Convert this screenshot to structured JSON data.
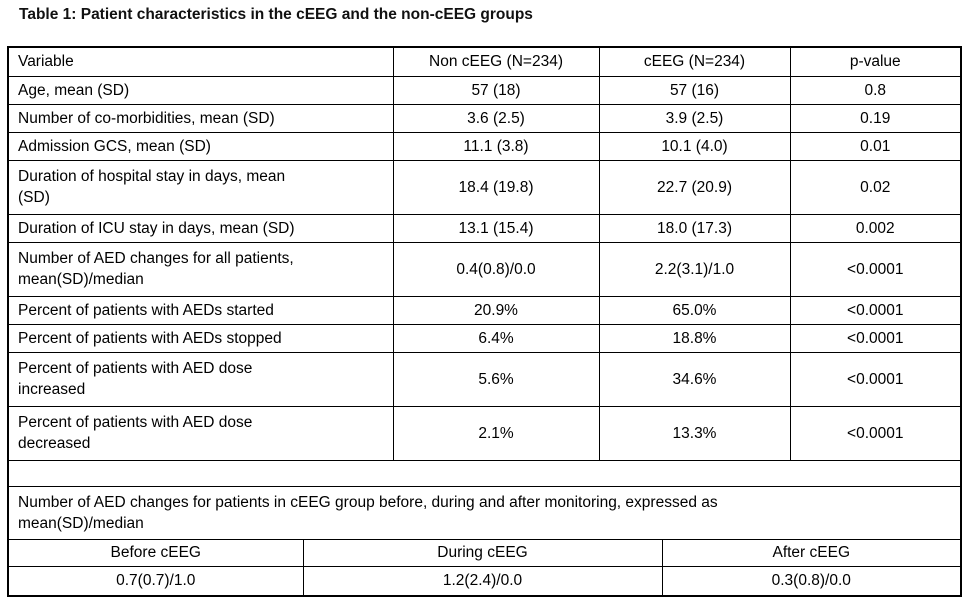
{
  "page": {
    "title": "Table 1: Patient characteristics in the cEEG and the non-cEEG groups"
  },
  "colors": {
    "text": "#000000",
    "border": "#000000",
    "background": "#ffffff"
  },
  "table": {
    "headers": {
      "variable": "Variable",
      "non_ceeg": "Non cEEG (N=234)",
      "ceeg": "cEEG (N=234)",
      "p_value": "p-value"
    },
    "rows": [
      {
        "variable": "Age, mean (SD)",
        "non_ceeg": "57 (18)",
        "ceeg": "57 (16)",
        "p_value": "0.8"
      },
      {
        "variable": "Number of co-morbidities, mean (SD)",
        "non_ceeg": "3.6 (2.5)",
        "ceeg": "3.9 (2.5)",
        "p_value": "0.19"
      },
      {
        "variable": "Admission GCS, mean (SD)",
        "non_ceeg": "11.1 (3.8)",
        "ceeg": "10.1 (4.0)",
        "p_value": "0.01"
      },
      {
        "variable": "Duration of hospital stay in days, mean\n(SD)",
        "non_ceeg": "18.4 (19.8)",
        "ceeg": "22.7 (20.9)",
        "p_value": "0.02"
      },
      {
        "variable": "Duration of ICU stay in days, mean (SD)",
        "non_ceeg": "13.1 (15.4)",
        "ceeg": "18.0 (17.3)",
        "p_value": "0.002"
      },
      {
        "variable": "Number of AED changes for all patients,\nmean(SD)/median",
        "non_ceeg": "0.4(0.8)/0.0",
        "ceeg": "2.2(3.1)/1.0",
        "p_value": "<0.0001"
      },
      {
        "variable": "Percent of patients with AEDs started",
        "non_ceeg": "20.9%",
        "ceeg": "65.0%",
        "p_value": "<0.0001"
      },
      {
        "variable": "Percent of patients with AEDs stopped",
        "non_ceeg": "6.4%",
        "ceeg": "18.8%",
        "p_value": "<0.0001"
      },
      {
        "variable": "Percent of patients with AED dose\nincreased",
        "non_ceeg": "5.6%",
        "ceeg": "34.6%",
        "p_value": "<0.0001"
      },
      {
        "variable": "Percent of patients with AED dose\ndecreased",
        "non_ceeg": "2.1%",
        "ceeg": "13.3%",
        "p_value": "<0.0001"
      }
    ],
    "footer_note": "Number of AED changes for patients in cEEG group before, during and after monitoring, expressed as\nmean(SD)/median",
    "sub_table": {
      "headers": {
        "before": "Before cEEG",
        "during": "During cEEG",
        "after": "After cEEG"
      },
      "values": {
        "before": "0.7(0.7)/1.0",
        "during": "1.2(2.4)/0.0",
        "after": "0.3(0.8)/0.0"
      }
    }
  }
}
